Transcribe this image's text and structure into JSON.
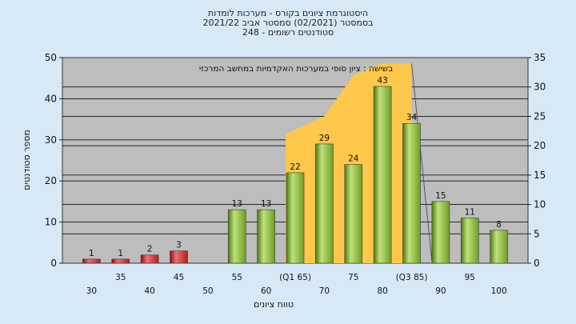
{
  "chart_data": {
    "type": "bar",
    "title_lines": [
      "היסטוגרמת ציונים בקורס - מערכות לומדות",
      "בסמסטר   (02/2021)  סמסטר אביב 2021/22",
      "סטודנטים רשומים - 248"
    ],
    "annotation": "בשישה : ציון סופי במערכות האקדמיות במחשב המרכזי",
    "xlabel": "טווח ציונים",
    "ylabel": "מספר סטודנטים",
    "ylim": [
      0,
      50
    ],
    "y_ticks": [
      0,
      10,
      20,
      30,
      40,
      50
    ],
    "y2lim": [
      0,
      35
    ],
    "y2_ticks": [
      0,
      5,
      10,
      15,
      20,
      25,
      30,
      35
    ],
    "categories": [
      "30",
      "35",
      "40",
      "45",
      "50",
      "55",
      "60",
      "(Q1 65)",
      "70",
      "75",
      "80",
      "(Q3 85)",
      "90",
      "95",
      "100"
    ],
    "values": [
      1,
      1,
      2,
      3,
      0,
      13,
      13,
      22,
      29,
      24,
      43,
      34,
      15,
      11,
      8
    ],
    "bar_colors": [
      "#d42b2b",
      "#d42b2b",
      "#d42b2b",
      "#d42b2b",
      "#d42b2b",
      "#7fb230",
      "#7fb230",
      "#7fb230",
      "#7fb230",
      "#7fb230",
      "#7fb230",
      "#7fb230",
      "#7fb230",
      "#7fb230",
      "#7fb230"
    ],
    "area": {
      "color": "#ffc84a",
      "categories": [
        "(Q1 65)",
        "70",
        "75",
        "80",
        "(Q3 85)"
      ],
      "values_y2": [
        22,
        25,
        32,
        34,
        34
      ]
    },
    "grid": true,
    "legend": "none"
  },
  "colors": {
    "background": "#d7e9f7",
    "plot_background": "#bdbdbd",
    "grid": "#111111"
  }
}
